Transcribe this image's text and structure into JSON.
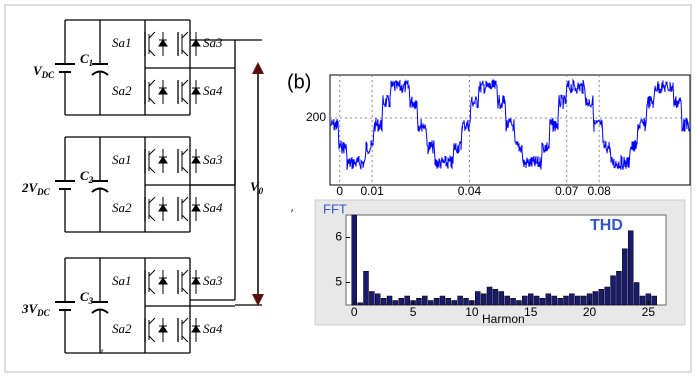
{
  "circuit": {
    "cells": [
      {
        "source": {
          "v": "V",
          "sub": "DC"
        },
        "cap": {
          "c": "C",
          "sub": "1"
        },
        "switches": [
          "Sa1",
          "Sa2",
          "Sa3",
          "Sa4"
        ]
      },
      {
        "source": {
          "coef": "2",
          "v": "V",
          "sub": "DC"
        },
        "cap": {
          "c": "C",
          "sub": "2"
        },
        "switches": [
          "Sa1",
          "Sa2",
          "Sa3",
          "Sa4"
        ]
      },
      {
        "source": {
          "coef": "3",
          "v": "V",
          "sub": "DC"
        },
        "cap": {
          "c": "C",
          "sub": "3"
        },
        "switches": [
          "Sa1",
          "Sa2",
          "Sa3",
          "Sa4"
        ]
      }
    ],
    "output": {
      "v": "V",
      "sub": "0"
    }
  },
  "panel_b": {
    "label": "(b)",
    "xlim": [
      -0.003,
      0.108
    ],
    "xticks": [
      0,
      0.01,
      0.04,
      0.07,
      0.08
    ],
    "yticks": [
      200
    ]
  },
  "fft": {
    "title": "FFT",
    "thd": "THD",
    "xlabel": "Harmon",
    "xlim": [
      -0.7,
      26.5
    ],
    "ylim": [
      4.5,
      6.5
    ],
    "xticks": [
      0,
      5,
      10,
      15,
      20,
      25
    ],
    "yticks": [
      5,
      6
    ],
    "x": [
      0,
      0.5,
      1,
      1.5,
      2,
      2.5,
      3,
      3.5,
      4,
      4.5,
      5,
      5.5,
      6,
      6.5,
      7,
      7.5,
      8,
      8.5,
      9,
      9.5,
      10,
      10.5,
      11,
      11.5,
      12,
      12.5,
      13,
      13.5,
      14,
      14.5,
      15,
      15.5,
      16,
      16.5,
      17,
      17.5,
      18,
      18.5,
      19,
      19.5,
      20,
      20.5,
      21,
      21.5,
      22,
      22.5,
      23,
      23.5,
      24,
      24.5,
      25,
      25.5
    ],
    "values": [
      6.5,
      4.55,
      5.25,
      4.8,
      4.75,
      4.65,
      4.7,
      4.6,
      4.65,
      4.7,
      4.6,
      4.65,
      4.7,
      4.6,
      4.65,
      4.7,
      4.65,
      4.6,
      4.7,
      4.65,
      4.6,
      4.8,
      4.75,
      4.9,
      4.85,
      4.8,
      4.7,
      4.65,
      4.6,
      4.7,
      4.75,
      4.7,
      4.65,
      4.75,
      4.7,
      4.65,
      4.7,
      4.75,
      4.7,
      4.7,
      4.75,
      4.8,
      4.85,
      4.9,
      5.15,
      5.25,
      5.75,
      6.15,
      5.0,
      4.7,
      4.75,
      4.7
    ]
  }
}
